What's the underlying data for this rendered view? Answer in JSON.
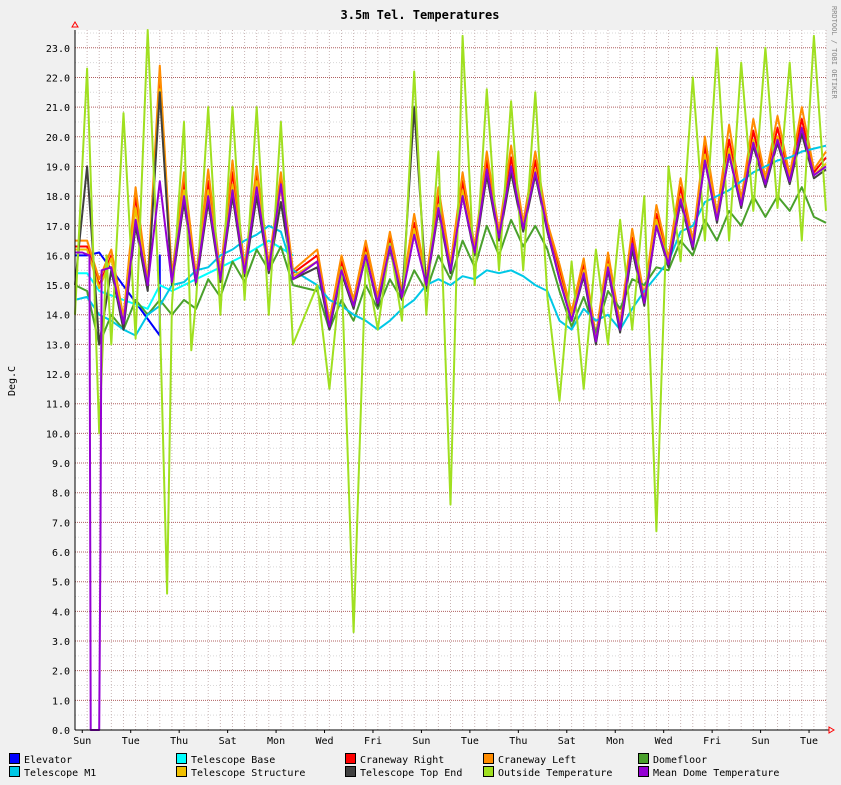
{
  "chart_data": {
    "type": "line",
    "title": "3.5m Tel. Temperatures",
    "ylabel": "Deg.C",
    "side_label": "RRDTOOL / TOBI OETIKER",
    "ylim": [
      0,
      23.6
    ],
    "yticks": [
      "0.0",
      "1.0",
      "2.0",
      "3.0",
      "4.0",
      "5.0",
      "6.0",
      "7.0",
      "8.0",
      "9.0",
      "10.0",
      "11.0",
      "12.0",
      "13.0",
      "14.0",
      "15.0",
      "16.0",
      "17.0",
      "18.0",
      "19.0",
      "20.0",
      "21.0",
      "22.0",
      "23.0"
    ],
    "x_days": 31,
    "xticks": [
      {
        "label": "Sun",
        "day": 0.3
      },
      {
        "label": "Tue",
        "day": 2.3
      },
      {
        "label": "Thu",
        "day": 4.3
      },
      {
        "label": "Sat",
        "day": 6.3
      },
      {
        "label": "Mon",
        "day": 8.3
      },
      {
        "label": "Wed",
        "day": 10.3
      },
      {
        "label": "Fri",
        "day": 12.3
      },
      {
        "label": "Sun",
        "day": 14.3
      },
      {
        "label": "Tue",
        "day": 16.3
      },
      {
        "label": "Thu",
        "day": 18.3
      },
      {
        "label": "Sat",
        "day": 20.3
      },
      {
        "label": "Mon",
        "day": 22.3
      },
      {
        "label": "Wed",
        "day": 24.3
      },
      {
        "label": "Fri",
        "day": 26.3
      },
      {
        "label": "Sun",
        "day": 28.3
      },
      {
        "label": "Tue",
        "day": 30.3
      }
    ],
    "grid": true,
    "legend_position": "bottom",
    "series": [
      {
        "name": "Elevator",
        "color": "#0000ff",
        "x": [
          0,
          0.5,
          1.0,
          3.5,
          3.5,
          3.5
        ],
        "y": [
          16.0,
          16.0,
          16.1,
          13.3,
          16.0,
          15.0
        ]
      },
      {
        "name": "Telescope Base",
        "color": "#00ffff",
        "x": [
          0,
          0.5,
          1,
          2,
          3,
          3.5,
          4,
          5,
          6,
          7,
          8,
          9
        ],
        "y": [
          15.4,
          15.4,
          14.8,
          14.5,
          14.2,
          15.0,
          14.8,
          15.2,
          15.6,
          16.0,
          16.5,
          16.0
        ]
      },
      {
        "name": "Craneway Right",
        "color": "#ff0000",
        "x": [
          0,
          0.5,
          1,
          1.5,
          2,
          2.5,
          3,
          3.5,
          4,
          4.5,
          5,
          5.5,
          6,
          6.5,
          7,
          7.5,
          8,
          8.5,
          9,
          10,
          10.5,
          11,
          11.5,
          12,
          12.5,
          13,
          13.5,
          14,
          14.5,
          15,
          15.5,
          16,
          16.5,
          17,
          17.5,
          18,
          18.5,
          19,
          19.5,
          20,
          20.5,
          21,
          21.5,
          22,
          22.5,
          23,
          23.5,
          24,
          24.5,
          25,
          25.5,
          26,
          26.5,
          27,
          27.5,
          28,
          28.5,
          29,
          29.5,
          30,
          30.5,
          31
        ],
        "y": [
          16.3,
          16.3,
          15.0,
          16.0,
          13.8,
          18.0,
          15.0,
          22.0,
          15.2,
          18.5,
          15.2,
          18.5,
          15.3,
          18.8,
          15.5,
          18.8,
          15.6,
          18.6,
          15.4,
          16.0,
          13.7,
          15.8,
          14.4,
          16.3,
          14.5,
          16.6,
          14.7,
          17.1,
          15.1,
          18.0,
          15.6,
          18.5,
          16.2,
          19.2,
          16.7,
          19.3,
          17.0,
          19.2,
          17.0,
          15.5,
          14.0,
          15.7,
          13.2,
          15.9,
          13.6,
          16.6,
          14.5,
          17.4,
          15.8,
          18.3,
          16.4,
          19.7,
          17.3,
          19.9,
          17.8,
          20.2,
          18.5,
          20.3,
          18.6,
          20.6,
          18.8,
          19.3
        ]
      },
      {
        "name": "Craneway Left",
        "color": "#ff8c00",
        "x": [
          0,
          0.5,
          1,
          1.5,
          2,
          2.5,
          3,
          3.5,
          4,
          4.5,
          5,
          5.5,
          6,
          6.5,
          7,
          7.5,
          8,
          8.5,
          9,
          10,
          10.5,
          11,
          11.5,
          12,
          12.5,
          13,
          13.5,
          14,
          14.5,
          15,
          15.5,
          16,
          16.5,
          17,
          17.5,
          18,
          18.5,
          19,
          19.5,
          20,
          20.5,
          21,
          21.5,
          22,
          22.5,
          23,
          23.5,
          24,
          24.5,
          25,
          25.5,
          26,
          26.5,
          27,
          27.5,
          28,
          28.5,
          29,
          29.5,
          30,
          30.5,
          31
        ],
        "y": [
          16.5,
          16.5,
          15.2,
          16.2,
          13.9,
          18.3,
          15.1,
          22.4,
          15.3,
          18.8,
          15.3,
          18.9,
          15.4,
          19.2,
          15.6,
          19.0,
          15.7,
          18.8,
          15.5,
          16.2,
          13.8,
          16.0,
          14.5,
          16.5,
          14.6,
          16.8,
          14.8,
          17.4,
          15.2,
          18.3,
          15.7,
          18.8,
          16.3,
          19.5,
          16.8,
          19.7,
          17.1,
          19.5,
          17.1,
          15.7,
          14.1,
          15.9,
          13.3,
          16.1,
          13.7,
          16.9,
          14.6,
          17.7,
          15.9,
          18.6,
          16.5,
          20.0,
          17.4,
          20.4,
          17.9,
          20.6,
          18.6,
          20.7,
          18.7,
          21.0,
          18.9,
          19.5
        ]
      },
      {
        "name": "Domefloor",
        "color": "#4aa02c",
        "x": [
          0,
          0.5,
          1,
          1.5,
          2,
          2.5,
          3,
          3.5,
          4,
          4.5,
          5,
          5.5,
          6,
          6.5,
          7,
          7.5,
          8,
          8.5,
          9,
          10,
          10.5,
          11,
          11.5,
          12,
          12.5,
          13,
          13.5,
          14,
          14.5,
          15,
          15.5,
          16,
          16.5,
          17,
          17.5,
          18,
          18.5,
          19,
          19.5,
          20,
          20.5,
          21,
          21.5,
          22,
          22.5,
          23,
          23.5,
          24,
          24.5,
          25,
          25.5,
          26,
          26.5,
          27,
          27.5,
          28,
          28.5,
          29,
          29.5,
          30,
          30.5,
          31
        ],
        "y": [
          15.0,
          14.8,
          13.0,
          14.0,
          13.5,
          14.5,
          14.0,
          14.5,
          14.0,
          14.5,
          14.2,
          15.2,
          14.6,
          15.8,
          15.1,
          16.2,
          15.5,
          16.3,
          15.0,
          14.8,
          13.5,
          14.5,
          13.8,
          15.0,
          14.2,
          15.2,
          14.5,
          15.5,
          14.8,
          16.0,
          15.2,
          16.5,
          15.6,
          17.0,
          16.0,
          17.2,
          16.3,
          17.0,
          16.2,
          14.8,
          13.6,
          14.6,
          13.4,
          14.8,
          14.2,
          15.2,
          15.0,
          15.6,
          15.5,
          16.5,
          16.0,
          17.2,
          16.5,
          17.5,
          17.0,
          18.0,
          17.3,
          18.0,
          17.5,
          18.3,
          17.3,
          17.1
        ]
      },
      {
        "name": "Telescope M1",
        "color": "#00c8e6",
        "x": [
          0,
          0.5,
          1,
          1.5,
          2,
          2.5,
          3,
          3.5,
          4,
          4.5,
          5,
          5.5,
          6,
          6.5,
          7,
          7.5,
          8,
          8.5,
          9,
          10,
          10.5,
          11,
          11.5,
          12,
          12.5,
          13,
          13.5,
          14,
          14.5,
          15,
          15.5,
          16,
          16.5,
          17,
          17.5,
          18,
          18.5,
          19,
          19.5,
          20,
          20.5,
          21,
          21.5,
          22,
          22.5,
          23,
          23.5,
          24,
          24.5,
          25,
          25.5,
          26,
          26.5,
          27,
          27.5,
          28,
          28.5,
          29,
          29.5,
          30,
          30.5,
          31
        ],
        "y": [
          14.5,
          14.6,
          14.0,
          13.8,
          13.5,
          13.3,
          14.0,
          14.3,
          15.0,
          15.1,
          15.5,
          15.6,
          16.0,
          16.2,
          16.5,
          16.7,
          17.0,
          16.8,
          15.5,
          15.0,
          14.5,
          14.3,
          14.0,
          13.8,
          13.5,
          13.8,
          14.2,
          14.5,
          15.0,
          15.2,
          15.0,
          15.3,
          15.2,
          15.5,
          15.4,
          15.5,
          15.3,
          15.0,
          14.8,
          13.8,
          13.5,
          14.2,
          13.8,
          14.0,
          13.5,
          14.2,
          14.8,
          15.3,
          15.8,
          16.8,
          17.0,
          17.8,
          18.0,
          18.2,
          18.5,
          18.8,
          19.0,
          19.2,
          19.3,
          19.5,
          19.6,
          19.7
        ]
      },
      {
        "name": "Telescope Structure",
        "color": "#f0c000",
        "x": [
          0,
          0.5,
          1,
          1.5,
          2,
          2.5,
          3,
          3.5,
          4,
          4.5,
          5,
          5.5,
          6,
          6.5,
          7,
          7.5,
          8,
          8.5,
          9,
          10,
          10.5,
          11,
          11.5,
          12,
          12.5,
          13,
          13.5,
          14,
          14.5,
          15,
          15.5,
          16,
          16.5,
          17,
          17.5,
          18,
          18.5,
          19,
          19.5,
          20,
          20.5,
          21,
          21.5,
          22,
          22.5,
          23,
          23.5,
          24,
          24.5,
          25,
          25.5,
          26,
          26.5,
          27,
          27.5,
          28,
          28.5,
          29,
          29.5,
          30,
          30.5,
          31
        ],
        "y": [
          16.2,
          16.2,
          14.9,
          15.9,
          13.8,
          17.6,
          15.0,
          21.6,
          15.1,
          18.2,
          15.1,
          18.2,
          15.2,
          18.4,
          15.4,
          18.5,
          15.5,
          18.3,
          15.3,
          15.8,
          13.6,
          15.6,
          14.3,
          16.1,
          14.4,
          16.4,
          14.6,
          16.9,
          15.0,
          17.7,
          15.5,
          18.2,
          16.1,
          18.9,
          16.6,
          19.0,
          16.9,
          18.9,
          16.9,
          15.3,
          13.9,
          15.5,
          13.1,
          15.7,
          13.5,
          16.4,
          14.4,
          17.2,
          15.7,
          18.0,
          16.3,
          19.4,
          17.2,
          19.6,
          17.7,
          19.9,
          18.4,
          20.0,
          18.5,
          20.3,
          18.7,
          19.1
        ]
      },
      {
        "name": "Telescope Top End",
        "color": "#404040",
        "x": [
          0,
          0.5,
          1,
          1.5,
          2,
          2.5,
          3,
          3.5,
          4,
          4.5,
          5,
          5.5,
          6,
          6.5,
          7,
          7.5,
          8,
          8.5,
          9,
          10,
          10.5,
          11,
          11.5,
          12,
          12.5,
          13,
          13.5,
          14,
          14.5,
          15,
          15.5,
          16,
          16.5,
          17,
          17.5,
          18,
          18.5,
          19,
          19.5,
          20,
          20.5,
          21,
          21.5,
          22,
          22.5,
          23,
          23.5,
          24,
          24.5,
          25,
          25.5,
          26,
          26.5,
          27,
          27.5,
          28,
          28.5,
          29,
          29.5,
          30,
          30.5,
          31
        ],
        "y": [
          15.0,
          19.0,
          13.0,
          15.5,
          13.5,
          17.0,
          14.8,
          21.5,
          15.0,
          17.8,
          15.0,
          17.8,
          15.1,
          18.0,
          15.3,
          18.0,
          15.4,
          17.8,
          15.2,
          15.6,
          13.5,
          15.4,
          14.2,
          16.0,
          14.3,
          16.2,
          14.5,
          21.0,
          14.9,
          17.5,
          15.4,
          18.0,
          16.0,
          18.7,
          16.5,
          18.8,
          16.8,
          18.7,
          16.8,
          15.2,
          13.8,
          15.3,
          13.0,
          15.5,
          13.4,
          16.2,
          14.3,
          17.0,
          15.6,
          17.8,
          16.2,
          19.2,
          17.1,
          19.4,
          17.6,
          19.7,
          18.3,
          19.8,
          18.4,
          20.1,
          18.6,
          18.9
        ]
      },
      {
        "name": "Outside Temperature",
        "color": "#a0e020",
        "x": [
          0,
          0.5,
          1,
          1.3,
          1.5,
          2,
          2.5,
          3,
          3.5,
          3.8,
          4,
          4.5,
          4.8,
          5,
          5.5,
          6,
          6.5,
          7,
          7.5,
          8,
          8.5,
          9,
          10,
          10.5,
          11,
          11.5,
          12,
          12.5,
          13,
          13.5,
          14,
          14.5,
          15,
          15.5,
          16,
          16.5,
          17,
          17.5,
          18,
          18.5,
          19,
          19.5,
          20,
          20.5,
          21,
          21.5,
          22,
          22.5,
          23,
          23.5,
          24,
          24.5,
          25,
          25.5,
          26,
          26.5,
          27,
          27.5,
          28,
          28.5,
          29,
          29.5,
          30,
          30.5,
          31
        ],
        "y": [
          14.0,
          22.3,
          10.0,
          16.0,
          13.0,
          20.8,
          13.2,
          23.6,
          14.0,
          4.6,
          14.3,
          20.5,
          12.8,
          14.5,
          21.0,
          14.0,
          21.0,
          14.5,
          21.0,
          14.0,
          20.5,
          13.0,
          15.0,
          11.5,
          15.6,
          3.3,
          15.8,
          13.5,
          16.4,
          13.8,
          22.2,
          14.0,
          19.5,
          7.6,
          23.4,
          15.0,
          21.6,
          15.5,
          21.2,
          15.5,
          21.5,
          14.6,
          11.1,
          15.8,
          11.5,
          16.2,
          13.0,
          17.2,
          13.5,
          18.0,
          6.7,
          19.0,
          15.8,
          22.0,
          16.5,
          23.0,
          16.5,
          22.5,
          17.5,
          23.0,
          17.6,
          22.5,
          16.5,
          23.4,
          17.5
        ]
      },
      {
        "name": "Mean Dome Temperature",
        "color": "#9400d3",
        "x": [
          0,
          0.3,
          0.6,
          0.65,
          0.7,
          1.0,
          1.05,
          1.1,
          1.5,
          2,
          2.5,
          3,
          3.5,
          4,
          4.5,
          5,
          5.5,
          6,
          6.5,
          7,
          7.5,
          8,
          8.5,
          9,
          10,
          10.5,
          11,
          11.5,
          12,
          12.5,
          13,
          13.5,
          14,
          14.5,
          15,
          15.5,
          16,
          16.5,
          17,
          17.5,
          18,
          18.5,
          19,
          19.5,
          20,
          20.5,
          21,
          21.5,
          22,
          22.5,
          23,
          23.5,
          24,
          24.5,
          25,
          25.5,
          26,
          26.5,
          27,
          27.5,
          28,
          28.5,
          29,
          29.5,
          30,
          30.5,
          31
        ],
        "y": [
          16.1,
          16.1,
          16.0,
          0.0,
          0.0,
          0.0,
          6.0,
          15.5,
          15.6,
          13.7,
          17.2,
          15.0,
          18.5,
          15.1,
          18.0,
          15.1,
          18.0,
          15.2,
          18.2,
          15.4,
          18.3,
          15.5,
          18.4,
          15.2,
          15.8,
          13.6,
          15.5,
          14.3,
          16.0,
          14.4,
          16.3,
          14.6,
          16.7,
          15.0,
          17.6,
          15.5,
          18.0,
          16.1,
          18.9,
          16.6,
          19.0,
          16.9,
          18.8,
          16.9,
          15.2,
          13.8,
          15.4,
          13.1,
          15.6,
          13.5,
          16.4,
          14.4,
          17.0,
          15.7,
          17.9,
          16.3,
          19.2,
          17.2,
          19.4,
          17.7,
          19.8,
          18.4,
          19.9,
          18.5,
          20.3,
          18.7,
          19.0
        ]
      }
    ]
  }
}
